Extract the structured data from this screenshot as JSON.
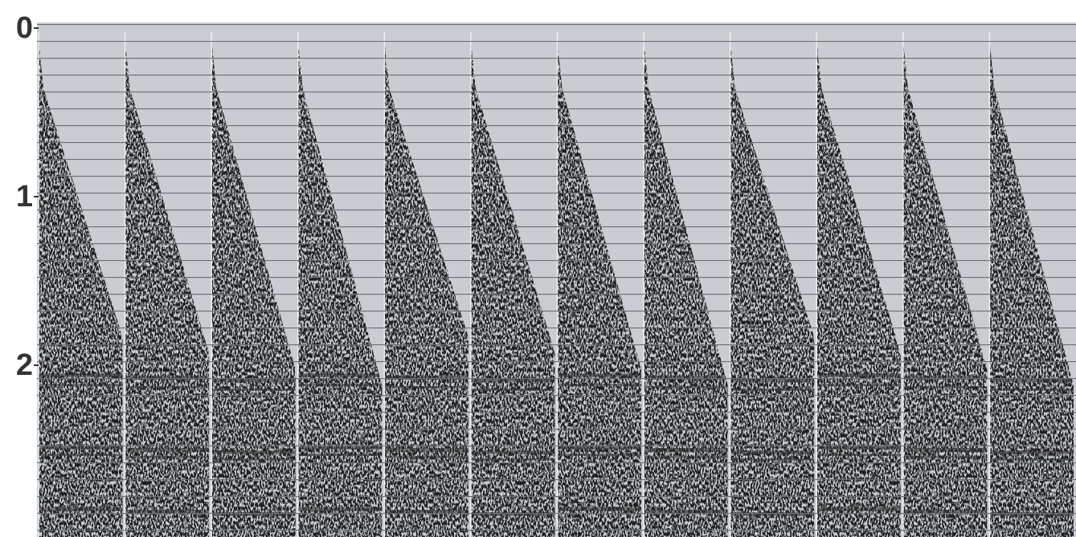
{
  "chart_data": {
    "type": "seismic",
    "ylim": [
      0,
      3
    ],
    "yticks": [
      0,
      1,
      2
    ],
    "panels": 12
  }
}
